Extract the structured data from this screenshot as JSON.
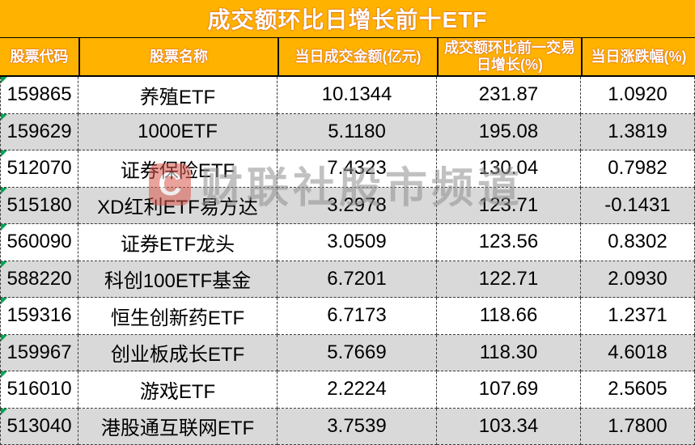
{
  "title": "成交额环比日增长前十ETF",
  "chart_data": {
    "type": "table",
    "title": "成交额环比日增长前十ETF",
    "columns": [
      "股票代码",
      "股票名称",
      "当日成交金额(亿元)",
      "成交额环比前一交易日增长(%)",
      "当日涨跌幅(%)"
    ],
    "rows": [
      [
        "159865",
        "养殖ETF",
        "10.1344",
        "231.87",
        "1.0920"
      ],
      [
        "159629",
        "1000ETF",
        "5.1180",
        "195.08",
        "1.3819"
      ],
      [
        "512070",
        "证券保险ETF",
        "7.4323",
        "130.04",
        "0.7982"
      ],
      [
        "515180",
        "XD红利ETF易方达",
        "3.2978",
        "123.71",
        "-0.1431"
      ],
      [
        "560090",
        "证券ETF龙头",
        "3.0509",
        "123.56",
        "0.8302"
      ],
      [
        "588220",
        "科创100ETF基金",
        "6.7201",
        "122.71",
        "2.0930"
      ],
      [
        "159316",
        "恒生创新药ETF",
        "6.7173",
        "118.66",
        "1.2371"
      ],
      [
        "159967",
        "创业板成长ETF",
        "5.7669",
        "118.30",
        "4.6018"
      ],
      [
        "516010",
        "游戏ETF",
        "2.2224",
        "107.69",
        "2.5605"
      ],
      [
        "513040",
        "港股通互联网ETF",
        "3.7539",
        "103.34",
        "1.7800"
      ]
    ]
  },
  "watermark": {
    "logo_letter": "C",
    "text": "财联社股市频道"
  },
  "colors": {
    "header_bg": "#FFB300",
    "header_text": "#FFFFFF",
    "text_fringe": "#C23B28",
    "row_bg": "#FFFFFF",
    "row_alt_bg": "#D9D9D9",
    "cell_text": "#000000",
    "dashed_border": "#3A3A3A",
    "indicator_green": "#00A650",
    "watermark_gray": "#8F8F8F",
    "watermark_logo": "#D9574D"
  }
}
